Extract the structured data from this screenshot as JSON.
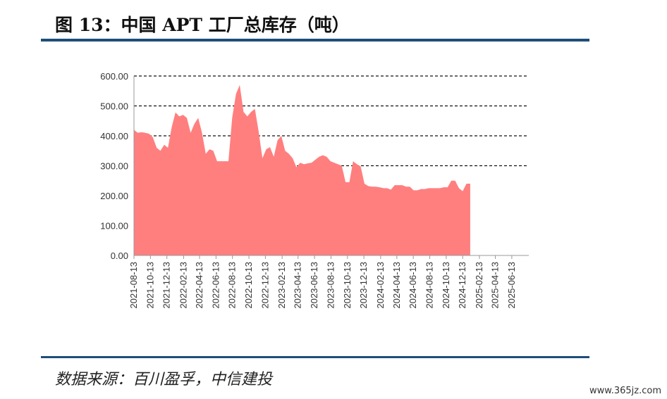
{
  "header": {
    "title": "图 13：中国 APT 工厂总库存（吨）"
  },
  "footer": {
    "source": "数据来源：百川盈孚，中信建投",
    "watermark": "www.365jz.com"
  },
  "chart_data": {
    "type": "area",
    "title": "",
    "xlabel": "",
    "ylabel": "",
    "ylim": [
      0,
      600
    ],
    "yticks": [
      "0.00",
      "100.00",
      "200.00",
      "300.00",
      "400.00",
      "500.00",
      "600.00"
    ],
    "grid": "dashed horizontal lines at 300, 400, 500, 600",
    "color": "#ff7f7f",
    "xticks": [
      "2021-08-13",
      "2021-10-13",
      "2021-12-13",
      "2022-02-13",
      "2022-04-13",
      "2022-06-13",
      "2022-08-13",
      "2022-10-13",
      "2022-12-13",
      "2023-02-13",
      "2023-04-13",
      "2023-06-13",
      "2023-08-13",
      "2023-10-13",
      "2023-12-13",
      "2024-02-13",
      "2024-04-13",
      "2024-06-13",
      "2024-08-13",
      "2024-10-13",
      "2024-12-13",
      "2025-02-13",
      "2025-04-13",
      "2025-06-13"
    ],
    "x_range": [
      "2021-08-13",
      "2025-08-15"
    ],
    "points": [
      [
        "2021-08-13",
        420
      ],
      [
        "2021-08-27",
        410
      ],
      [
        "2021-09-10",
        412
      ],
      [
        "2021-09-24",
        410
      ],
      [
        "2021-10-08",
        407
      ],
      [
        "2021-10-22",
        395
      ],
      [
        "2021-11-05",
        360
      ],
      [
        "2021-11-19",
        350
      ],
      [
        "2021-12-03",
        370
      ],
      [
        "2021-12-17",
        360
      ],
      [
        "2021-12-31",
        430
      ],
      [
        "2022-01-14",
        478
      ],
      [
        "2022-01-28",
        465
      ],
      [
        "2022-02-11",
        470
      ],
      [
        "2022-02-25",
        460
      ],
      [
        "2022-03-11",
        410
      ],
      [
        "2022-03-25",
        440
      ],
      [
        "2022-04-08",
        460
      ],
      [
        "2022-04-22",
        410
      ],
      [
        "2022-05-06",
        340
      ],
      [
        "2022-05-20",
        355
      ],
      [
        "2022-06-03",
        350
      ],
      [
        "2022-06-17",
        315
      ],
      [
        "2022-07-01",
        315
      ],
      [
        "2022-07-15",
        315
      ],
      [
        "2022-07-29",
        315
      ],
      [
        "2022-08-12",
        460
      ],
      [
        "2022-08-26",
        540
      ],
      [
        "2022-09-09",
        570
      ],
      [
        "2022-09-23",
        480
      ],
      [
        "2022-10-07",
        465
      ],
      [
        "2022-10-21",
        480
      ],
      [
        "2022-11-04",
        490
      ],
      [
        "2022-11-18",
        415
      ],
      [
        "2022-12-02",
        325
      ],
      [
        "2022-12-16",
        355
      ],
      [
        "2022-12-30",
        362
      ],
      [
        "2023-01-13",
        330
      ],
      [
        "2023-01-27",
        385
      ],
      [
        "2023-02-10",
        400
      ],
      [
        "2023-02-24",
        350
      ],
      [
        "2023-03-10",
        340
      ],
      [
        "2023-03-24",
        325
      ],
      [
        "2023-04-07",
        295
      ],
      [
        "2023-04-21",
        310
      ],
      [
        "2023-05-05",
        305
      ],
      [
        "2023-05-19",
        308
      ],
      [
        "2023-06-02",
        310
      ],
      [
        "2023-06-16",
        320
      ],
      [
        "2023-06-30",
        330
      ],
      [
        "2023-07-14",
        335
      ],
      [
        "2023-07-28",
        330
      ],
      [
        "2023-08-11",
        315
      ],
      [
        "2023-08-25",
        310
      ],
      [
        "2023-09-08",
        305
      ],
      [
        "2023-09-22",
        300
      ],
      [
        "2023-10-06",
        245
      ],
      [
        "2023-10-20",
        245
      ],
      [
        "2023-11-03",
        315
      ],
      [
        "2023-11-17",
        305
      ],
      [
        "2023-12-01",
        298
      ],
      [
        "2023-12-15",
        240
      ],
      [
        "2023-12-29",
        232
      ],
      [
        "2024-01-12",
        230
      ],
      [
        "2024-01-26",
        230
      ],
      [
        "2024-02-09",
        228
      ],
      [
        "2024-02-23",
        225
      ],
      [
        "2024-03-08",
        225
      ],
      [
        "2024-03-22",
        220
      ],
      [
        "2024-04-05",
        235
      ],
      [
        "2024-04-19",
        235
      ],
      [
        "2024-05-03",
        235
      ],
      [
        "2024-05-17",
        230
      ],
      [
        "2024-05-31",
        230
      ],
      [
        "2024-06-14",
        218
      ],
      [
        "2024-06-28",
        218
      ],
      [
        "2024-07-12",
        222
      ],
      [
        "2024-07-26",
        222
      ],
      [
        "2024-08-09",
        225
      ],
      [
        "2024-08-23",
        225
      ],
      [
        "2024-09-06",
        225
      ],
      [
        "2024-09-20",
        225
      ],
      [
        "2024-10-04",
        228
      ],
      [
        "2024-10-18",
        228
      ],
      [
        "2024-11-01",
        250
      ],
      [
        "2024-11-15",
        250
      ],
      [
        "2024-11-29",
        225
      ],
      [
        "2024-12-13",
        215
      ],
      [
        "2024-12-27",
        240
      ],
      [
        "2025-01-10",
        240
      ]
    ]
  }
}
